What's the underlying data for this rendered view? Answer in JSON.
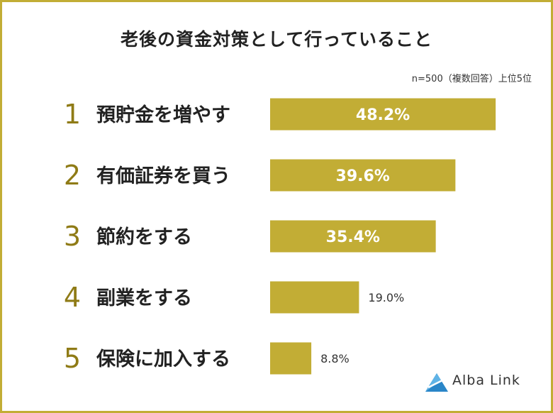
{
  "chart_data": {
    "type": "bar",
    "orientation": "horizontal",
    "title": "老後の資金対策として行っていること",
    "note": "n=500（複数回答）上位5位",
    "ranks": [
      "1",
      "2",
      "3",
      "4",
      "5"
    ],
    "categories": [
      "預貯金を増やす",
      "有価証券を買う",
      "節約をする",
      "副業をする",
      "保険に加入する"
    ],
    "values": [
      48.2,
      39.6,
      35.4,
      19.0,
      8.8
    ],
    "value_labels": [
      "48.2%",
      "39.6%",
      "35.4%",
      "19.0%",
      "8.8%"
    ],
    "legend": "none",
    "grid": false
  },
  "colors": {
    "bar": "#c2ad35",
    "frame": "#c2ad35",
    "rank": "#8f7b16",
    "text": "#222222"
  },
  "brand": {
    "name": "Alba Link",
    "icon": "alba-link-logo-icon"
  }
}
